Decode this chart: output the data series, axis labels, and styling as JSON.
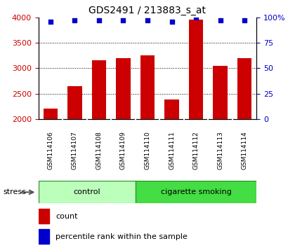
{
  "title": "GDS2491 / 213883_s_at",
  "samples": [
    "GSM114106",
    "GSM114107",
    "GSM114108",
    "GSM114109",
    "GSM114110",
    "GSM114111",
    "GSM114112",
    "GSM114113",
    "GSM114114"
  ],
  "counts": [
    2200,
    2650,
    3150,
    3200,
    3250,
    2380,
    3950,
    3050,
    3200
  ],
  "percentiles": [
    96,
    97,
    97,
    97,
    97,
    96,
    100,
    97,
    97
  ],
  "groups": [
    {
      "label": "control",
      "start": 0,
      "end": 4,
      "color": "#bbffbb"
    },
    {
      "label": "cigarette smoking",
      "start": 4,
      "end": 9,
      "color": "#44dd44"
    }
  ],
  "bar_color": "#cc0000",
  "dot_color": "#0000cc",
  "ylim_left": [
    2000,
    4000
  ],
  "ylim_right": [
    0,
    100
  ],
  "left_ticks": [
    2000,
    2500,
    3000,
    3500,
    4000
  ],
  "right_ticks": [
    0,
    25,
    50,
    75,
    100
  ],
  "right_tick_labels": [
    "0",
    "25",
    "50",
    "75",
    "100%"
  ],
  "grid_values": [
    2500,
    3000,
    3500
  ],
  "stress_label": "stress",
  "legend_count_label": "count",
  "legend_pct_label": "percentile rank within the sample",
  "bg_color": "#ffffff",
  "label_area_color": "#cccccc"
}
